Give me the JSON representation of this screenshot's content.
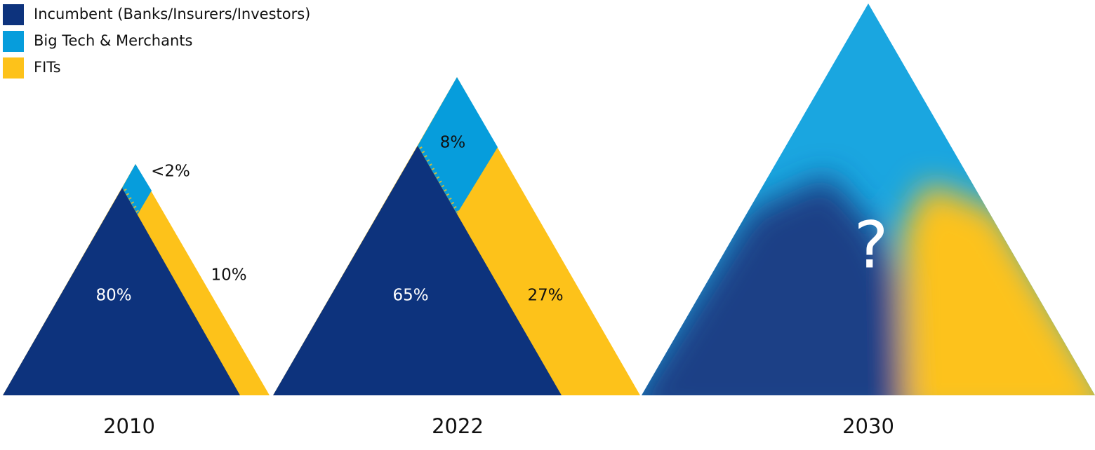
{
  "legend": [
    {
      "label": "Incumbent (Banks/Insurers/Investors)",
      "color": "#0d337d"
    },
    {
      "label": "Big Tech & Merchants",
      "color": "#069ddc"
    },
    {
      "label": "FITs",
      "color": "#fdc21a"
    }
  ],
  "triangles": [
    {
      "year": "2010",
      "labels": [
        "<2%",
        "10%",
        "80%"
      ]
    },
    {
      "year": "2022",
      "labels": [
        "8%",
        "65%",
        "27%"
      ]
    },
    {
      "year": "2030",
      "labels": [
        "?"
      ]
    }
  ]
}
